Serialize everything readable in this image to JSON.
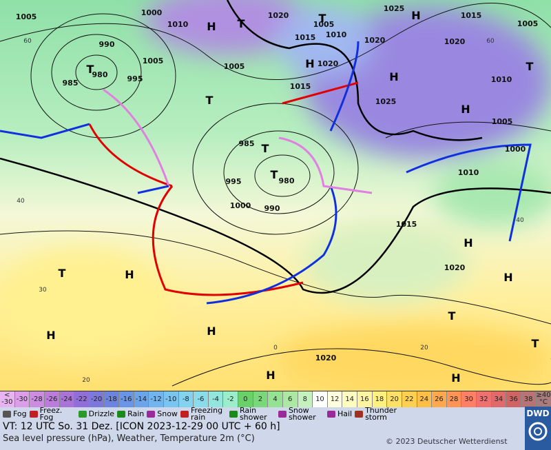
{
  "map": {
    "pressure_labels": [
      "1005",
      "1000",
      "1010",
      "1020",
      "1005",
      "1025",
      "1015",
      "1005",
      "990",
      "1015",
      "1010",
      "1020",
      "1020",
      "980",
      "985",
      "995",
      "1005",
      "1005",
      "1020",
      "1015",
      "1010",
      "1025",
      "985",
      "1005",
      "1000",
      "980",
      "995",
      "1010",
      "1000",
      "990",
      "1015",
      "1020",
      "1020"
    ],
    "temperature_labels": [
      "60",
      "40",
      "30",
      "20",
      "0",
      "20",
      "40",
      "60"
    ],
    "high_labels": [
      "H",
      "H",
      "H",
      "H",
      "H",
      "H",
      "H",
      "H",
      "H",
      "H",
      "H",
      "H"
    ],
    "low_labels": [
      "T",
      "T",
      "T",
      "T",
      "T",
      "T",
      "T",
      "T",
      "T",
      "T"
    ]
  },
  "colorscale": [
    {
      "label": [
        "<",
        "-30"
      ],
      "color": "#e8b4f0"
    },
    {
      "label": [
        "-30"
      ],
      "color": "#dc9ee8"
    },
    {
      "label": [
        "-28"
      ],
      "color": "#cc8ce2"
    },
    {
      "label": [
        "-26"
      ],
      "color": "#bc7cdc"
    },
    {
      "label": [
        "-24"
      ],
      "color": "#a874d8"
    },
    {
      "label": [
        "-22"
      ],
      "color": "#9070d8"
    },
    {
      "label": [
        "-20"
      ],
      "color": "#7c78dc"
    },
    {
      "label": [
        "-18"
      ],
      "color": "#6c84e0"
    },
    {
      "label": [
        "-16"
      ],
      "color": "#6a94e6"
    },
    {
      "label": [
        "-14"
      ],
      "color": "#6ca4ea"
    },
    {
      "label": [
        "-12"
      ],
      "color": "#72b4ee"
    },
    {
      "label": [
        "-10"
      ],
      "color": "#7ac4f0"
    },
    {
      "label": [
        "-8"
      ],
      "color": "#82d2f0"
    },
    {
      "label": [
        "-6"
      ],
      "color": "#8adcea"
    },
    {
      "label": [
        "-4"
      ],
      "color": "#92e6de"
    },
    {
      "label": [
        "-2"
      ],
      "color": "#9aeecc"
    },
    {
      "label": [
        "0"
      ],
      "color": "#6ad06a"
    },
    {
      "label": [
        "2"
      ],
      "color": "#7ad87a"
    },
    {
      "label": [
        "4"
      ],
      "color": "#94e292"
    },
    {
      "label": [
        "6"
      ],
      "color": "#ace8a4"
    },
    {
      "label": [
        "8"
      ],
      "color": "#c4f2bc"
    },
    {
      "label": [
        "10"
      ],
      "color": "#ffffff"
    },
    {
      "label": [
        "12"
      ],
      "color": "#ffffe0"
    },
    {
      "label": [
        "14"
      ],
      "color": "#fffcc0"
    },
    {
      "label": [
        "16"
      ],
      "color": "#fff4a0"
    },
    {
      "label": [
        "18"
      ],
      "color": "#fff080"
    },
    {
      "label": [
        "20"
      ],
      "color": "#ffe066"
    },
    {
      "label": [
        "22"
      ],
      "color": "#ffd050"
    },
    {
      "label": [
        "24"
      ],
      "color": "#ffbe44"
    },
    {
      "label": [
        "26"
      ],
      "color": "#ffa84c"
    },
    {
      "label": [
        "28"
      ],
      "color": "#ff9454"
    },
    {
      "label": [
        "30"
      ],
      "color": "#ff8064"
    },
    {
      "label": [
        "32"
      ],
      "color": "#f07070"
    },
    {
      "label": [
        "34"
      ],
      "color": "#e06a6a"
    },
    {
      "label": [
        "36"
      ],
      "color": "#d06464"
    },
    {
      "label": [
        "38"
      ],
      "color": "#b87474"
    },
    {
      "label": [
        "≥40",
        "°C"
      ],
      "color": "#a87c7c"
    }
  ],
  "legend": [
    {
      "label": "Fog",
      "color": "#555"
    },
    {
      "label": "Freez. Fog",
      "color": "#c02020"
    },
    {
      "label": "Drizzle",
      "color": "#2a9a2a"
    },
    {
      "label": "Rain",
      "color": "#1a8a1a"
    },
    {
      "label": "Snow",
      "color": "#9a2a9a"
    },
    {
      "label": "Freezing rain",
      "color": "#c02020"
    },
    {
      "label": "Rain shower",
      "color": "#1a8a1a"
    },
    {
      "label": "Snow shower",
      "color": "#9a2a9a"
    },
    {
      "label": "Hail",
      "color": "#9a2a9a"
    },
    {
      "label": "Thunder storm",
      "color": "#a03020"
    }
  ],
  "footer": {
    "valid_time": "VT: 12 UTC So.  31 Dez. [ICON 2023-12-29  00 UTC + 60 h]",
    "description": "Sea level pressure (hPa), Weather, Temperature 2m (°C)",
    "copyright": "© 2023 Deutscher Wetterdienst",
    "logo": "DWD"
  }
}
